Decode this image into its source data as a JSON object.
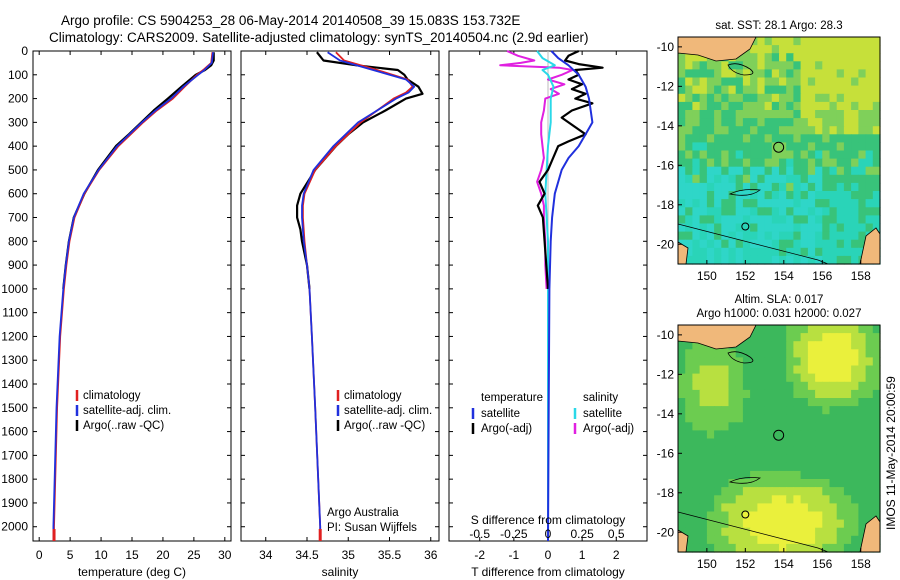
{
  "titles": {
    "line1": "Argo profile: CS 5904253_28 06-May-2014 20140508_39 15.083S 153.732E",
    "line2": "Climatology: CARS2009. Satellite-adjusted climatology: synTS_20140504.nc (2.9d earlier)"
  },
  "footer": "IMOS 11-May-2014 20:00:59",
  "colors": {
    "climatology": "#e02020",
    "satellite": "#2030dd",
    "argo": "#000000",
    "cyan": "#2ad8e8",
    "magenta": "#e020e0"
  },
  "chart_data": [
    {
      "type": "line",
      "id": "temperature",
      "xlabel": "temperature (deg C)",
      "ylabel": "depth",
      "xlim": [
        -1,
        31
      ],
      "ylim": [
        2060,
        0
      ],
      "xticks": [
        0,
        5,
        10,
        15,
        20,
        25,
        30
      ],
      "yticks": [
        0,
        100,
        200,
        300,
        400,
        500,
        600,
        700,
        800,
        900,
        1000,
        1100,
        1200,
        1300,
        1400,
        1500,
        1600,
        1700,
        1800,
        1900,
        2000
      ],
      "legend": [
        "climatology",
        "satellite-adj. clim.",
        "Argo(..raw -QC)"
      ],
      "series": [
        {
          "name": "climatology",
          "depth": [
            5,
            50,
            80,
            100,
            150,
            200,
            250,
            300,
            400,
            500,
            600,
            700,
            800,
            900,
            1000,
            1200,
            1500,
            2000,
            2060
          ],
          "values": [
            28.0,
            27.8,
            26.5,
            25.5,
            23.5,
            21.6,
            19.0,
            16.8,
            12.8,
            9.7,
            7.3,
            5.7,
            4.9,
            4.4,
            4.0,
            3.4,
            2.9,
            2.4,
            2.4
          ]
        },
        {
          "name": "satellite-adj. clim.",
          "depth": [
            5,
            50,
            80,
            100,
            150,
            200,
            250,
            300,
            400,
            500,
            600,
            700,
            800,
            900,
            1000,
            1200,
            1500,
            2000,
            2060
          ],
          "values": [
            28.1,
            27.9,
            26.7,
            25.7,
            23.3,
            21.3,
            18.8,
            16.6,
            12.6,
            9.6,
            7.2,
            5.6,
            4.8,
            4.3,
            3.9,
            3.3,
            2.8,
            2.3,
            2.3
          ]
        },
        {
          "name": "Argo(..raw -QC)",
          "depth": [
            5,
            40,
            60,
            80,
            100,
            150,
            200,
            250,
            300,
            350,
            400,
            500,
            600,
            700,
            800,
            900,
            1000
          ],
          "values": [
            28.2,
            28.2,
            27.8,
            26.8,
            25.3,
            23.0,
            20.8,
            18.5,
            16.5,
            14.5,
            12.4,
            9.5,
            7.3,
            5.6,
            4.8,
            4.3,
            3.9
          ]
        }
      ]
    },
    {
      "type": "line",
      "id": "salinity",
      "xlabel": "salinity",
      "ylabel": "depth",
      "xlim": [
        33.7,
        36.1
      ],
      "ylim": [
        2060,
        0
      ],
      "xticks": [
        34,
        34.5,
        35,
        35.5,
        36
      ],
      "legend": [
        "climatology",
        "satellite-adj. clim.",
        "Argo(..raw -QC)"
      ],
      "annotation": [
        "Argo Australia",
        "PI: Susan Wijffels"
      ],
      "series": [
        {
          "name": "climatology",
          "depth": [
            5,
            40,
            80,
            120,
            150,
            175,
            200,
            250,
            300,
            400,
            500,
            600,
            650,
            700,
            800,
            900,
            1000,
            1200,
            1500,
            2000,
            2060
          ],
          "values": [
            34.85,
            34.95,
            35.35,
            35.72,
            35.78,
            35.7,
            35.55,
            35.35,
            35.15,
            34.85,
            34.6,
            34.47,
            34.45,
            34.45,
            34.47,
            34.5,
            34.53,
            34.56,
            34.6,
            34.66,
            34.66
          ]
        },
        {
          "name": "satellite-adj. clim.",
          "depth": [
            5,
            40,
            80,
            120,
            150,
            175,
            200,
            250,
            300,
            400,
            500,
            600,
            650,
            700,
            800,
            900,
            1000,
            1200,
            1500,
            2000,
            2060
          ],
          "values": [
            34.75,
            34.9,
            35.3,
            35.7,
            35.8,
            35.73,
            35.58,
            35.35,
            35.12,
            34.82,
            34.58,
            34.46,
            34.44,
            34.44,
            34.46,
            34.5,
            34.53,
            34.56,
            34.6,
            34.66,
            34.66
          ]
        },
        {
          "name": "Argo(..raw -QC)",
          "depth": [
            5,
            40,
            60,
            80,
            100,
            120,
            150,
            180,
            200,
            250,
            300,
            350,
            400,
            500,
            600,
            650,
            700,
            750,
            800,
            900,
            1000
          ],
          "values": [
            34.62,
            34.7,
            35.1,
            35.6,
            35.68,
            35.72,
            35.85,
            35.9,
            35.7,
            35.45,
            35.18,
            35.0,
            34.85,
            34.6,
            34.42,
            34.38,
            34.38,
            34.42,
            34.44,
            34.5,
            34.53
          ]
        }
      ]
    },
    {
      "type": "line",
      "id": "difference",
      "xlabel": "T difference from climatology",
      "xlabel_top": "S difference from climatology",
      "xlim": [
        -2.9,
        2.9
      ],
      "ylim": [
        2060,
        0
      ],
      "xticks": [
        -2,
        -1,
        0,
        1,
        2
      ],
      "xticks_salinity": [
        -0.5,
        -0.25,
        0,
        0.25,
        0.5
      ],
      "legend_headers": [
        "temperature",
        "salinity"
      ],
      "legend": [
        "satellite",
        "Argo(-adj)",
        "satellite",
        "Argo(-adj)"
      ],
      "series": [
        {
          "name": "temperature satellite",
          "depth": [
            0,
            30,
            60,
            100,
            150,
            200,
            250,
            300,
            350,
            400,
            450,
            500,
            600,
            700,
            800,
            1000,
            1500,
            2060
          ],
          "values": [
            0.1,
            0.3,
            0.6,
            0.9,
            1.1,
            1.2,
            1.25,
            1.3,
            1.1,
            0.9,
            0.6,
            0.4,
            0.2,
            0.12,
            0.08,
            0.04,
            0.02,
            0.0
          ]
        },
        {
          "name": "temperature Argo(-adj)",
          "depth": [
            0,
            20,
            40,
            55,
            70,
            80,
            100,
            120,
            140,
            160,
            180,
            200,
            220,
            250,
            280,
            300,
            330,
            350,
            380,
            400,
            450,
            500,
            550,
            600,
            650,
            700,
            800,
            900,
            1000
          ],
          "values": [
            0.9,
            0.6,
            0.5,
            0.9,
            1.6,
            0.8,
            0.9,
            0.6,
            1.0,
            0.7,
            1.1,
            0.8,
            1.3,
            0.7,
            0.4,
            0.6,
            0.9,
            1.1,
            0.6,
            0.3,
            0.15,
            0.0,
            -0.25,
            -0.1,
            -0.3,
            -0.15,
            -0.1,
            -0.05,
            0.0
          ]
        },
        {
          "name": "salinity satellite",
          "depth": [
            0,
            30,
            60,
            80,
            100,
            150,
            200,
            300,
            400,
            600,
            800,
            1000,
            1500,
            2060
          ],
          "values": [
            -0.08,
            -0.04,
            0.05,
            -0.04,
            0.0,
            0.04,
            0.02,
            0.02,
            0.0,
            -0.02,
            0.0,
            0.0,
            0.0,
            0.0
          ]
        },
        {
          "name": "salinity Argo(-adj)",
          "depth": [
            0,
            20,
            40,
            50,
            60,
            70,
            80,
            100,
            120,
            140,
            160,
            180,
            200,
            250,
            300,
            350,
            400,
            450,
            500,
            550,
            600,
            650,
            700,
            800,
            900,
            1000
          ],
          "values": [
            -0.3,
            -0.22,
            -0.1,
            -0.2,
            -0.35,
            0.08,
            0.18,
            0.1,
            0.0,
            0.12,
            0.02,
            0.08,
            -0.02,
            -0.03,
            -0.05,
            -0.05,
            -0.04,
            -0.03,
            -0.05,
            -0.08,
            -0.05,
            -0.03,
            -0.03,
            -0.02,
            -0.02,
            -0.01
          ]
        }
      ]
    },
    {
      "type": "heatmap",
      "id": "sst-map",
      "title": "sat. SST: 28.1  Argo: 28.3",
      "xlim": [
        148.5,
        159
      ],
      "ylim": [
        -21,
        -9.5
      ],
      "xticks": [
        150,
        152,
        154,
        156,
        158
      ],
      "yticks": [
        -10,
        -12,
        -14,
        -16,
        -18,
        -20
      ],
      "argo_position": [
        153.732,
        -15.083
      ],
      "secondary_marker": [
        152.0,
        -19.1
      ]
    },
    {
      "type": "heatmap",
      "id": "sla-map",
      "title": [
        "Altim. SLA: 0.017",
        "Argo h1000: 0.031 h2000: 0.027"
      ],
      "xlim": [
        148.5,
        159
      ],
      "ylim": [
        -21,
        -9.5
      ],
      "xticks": [
        150,
        152,
        154,
        156,
        158
      ],
      "yticks": [
        -10,
        -12,
        -14,
        -16,
        -18,
        -20
      ],
      "argo_position": [
        153.732,
        -15.083
      ],
      "secondary_marker": [
        152.0,
        -19.1
      ]
    }
  ]
}
